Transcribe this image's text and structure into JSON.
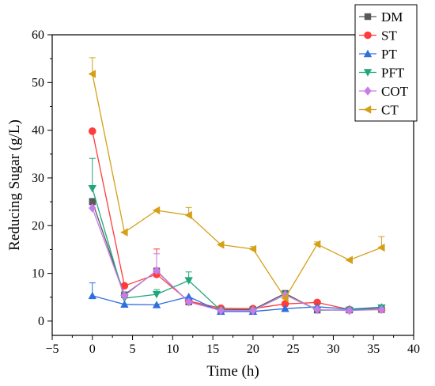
{
  "chart_data": {
    "type": "line",
    "xlabel": "Time (h)",
    "ylabel": "Reducing Sugar (g/L)",
    "xlim": [
      -5,
      40
    ],
    "ylim": [
      -3,
      60
    ],
    "xticks": [
      -5,
      0,
      5,
      10,
      15,
      20,
      25,
      30,
      35,
      40
    ],
    "yticks": [
      0,
      10,
      20,
      30,
      40,
      50,
      60
    ],
    "grid": false,
    "legend_position": "top-right",
    "series": [
      {
        "name": "DM",
        "color": "#595959",
        "marker": "square",
        "x": [
          0,
          4,
          8,
          12,
          16,
          20,
          24,
          28,
          32,
          36
        ],
        "y": [
          25.0,
          5.5,
          10.5,
          4.0,
          2.4,
          2.4,
          5.8,
          2.3,
          2.3,
          2.4
        ],
        "err": [
          0.7,
          0.4,
          0,
          0,
          0,
          0,
          0.3,
          0,
          0,
          0
        ]
      },
      {
        "name": "ST",
        "color": "#ff3b3b",
        "marker": "circle",
        "x": [
          0,
          4,
          8,
          12,
          16,
          20,
          24,
          28,
          32,
          36
        ],
        "y": [
          39.8,
          7.4,
          9.8,
          4.2,
          2.7,
          2.6,
          3.6,
          3.9,
          2.4,
          2.5
        ],
        "err": [
          0,
          0,
          5.3,
          0,
          0,
          0,
          0,
          0,
          0,
          0
        ]
      },
      {
        "name": "PT",
        "color": "#2e6fe0",
        "marker": "triangle-up",
        "x": [
          0,
          4,
          8,
          12,
          16,
          20,
          24,
          28,
          32,
          36
        ],
        "y": [
          5.3,
          3.5,
          3.4,
          5.1,
          2.0,
          2.0,
          2.6,
          3.0,
          2.5,
          2.9
        ],
        "err": [
          2.7,
          0,
          0,
          0,
          0,
          0,
          0,
          0,
          0,
          0
        ]
      },
      {
        "name": "PFT",
        "color": "#1fa77a",
        "marker": "triangle-down",
        "x": [
          0,
          4,
          8,
          12,
          16,
          20,
          24,
          28,
          32,
          36
        ],
        "y": [
          27.8,
          4.8,
          5.6,
          8.5,
          2.2,
          2.2,
          5.5,
          2.3,
          2.3,
          2.8
        ],
        "err": [
          6.3,
          0,
          1.0,
          1.8,
          0,
          0,
          0,
          0,
          0,
          0
        ]
      },
      {
        "name": "COT",
        "color": "#c77ce8",
        "marker": "diamond",
        "x": [
          0,
          4,
          8,
          12,
          16,
          20,
          24,
          28,
          32,
          36
        ],
        "y": [
          23.7,
          5.3,
          10.6,
          4.0,
          2.2,
          2.2,
          5.5,
          2.4,
          2.2,
          2.4
        ],
        "err": [
          0,
          0,
          3.5,
          0,
          0,
          0,
          0.2,
          0,
          0,
          0
        ]
      },
      {
        "name": "CT",
        "color": "#d4a017",
        "marker": "triangle-left",
        "x": [
          0,
          4,
          8,
          12,
          16,
          20,
          24,
          28,
          32,
          36
        ],
        "y": [
          51.8,
          18.6,
          23.2,
          22.2,
          16.0,
          15.1,
          4.8,
          16.1,
          12.8,
          15.4
        ],
        "err": [
          3.4,
          0,
          0,
          1.6,
          0,
          0.5,
          0,
          0.5,
          0,
          2.3
        ]
      }
    ]
  }
}
